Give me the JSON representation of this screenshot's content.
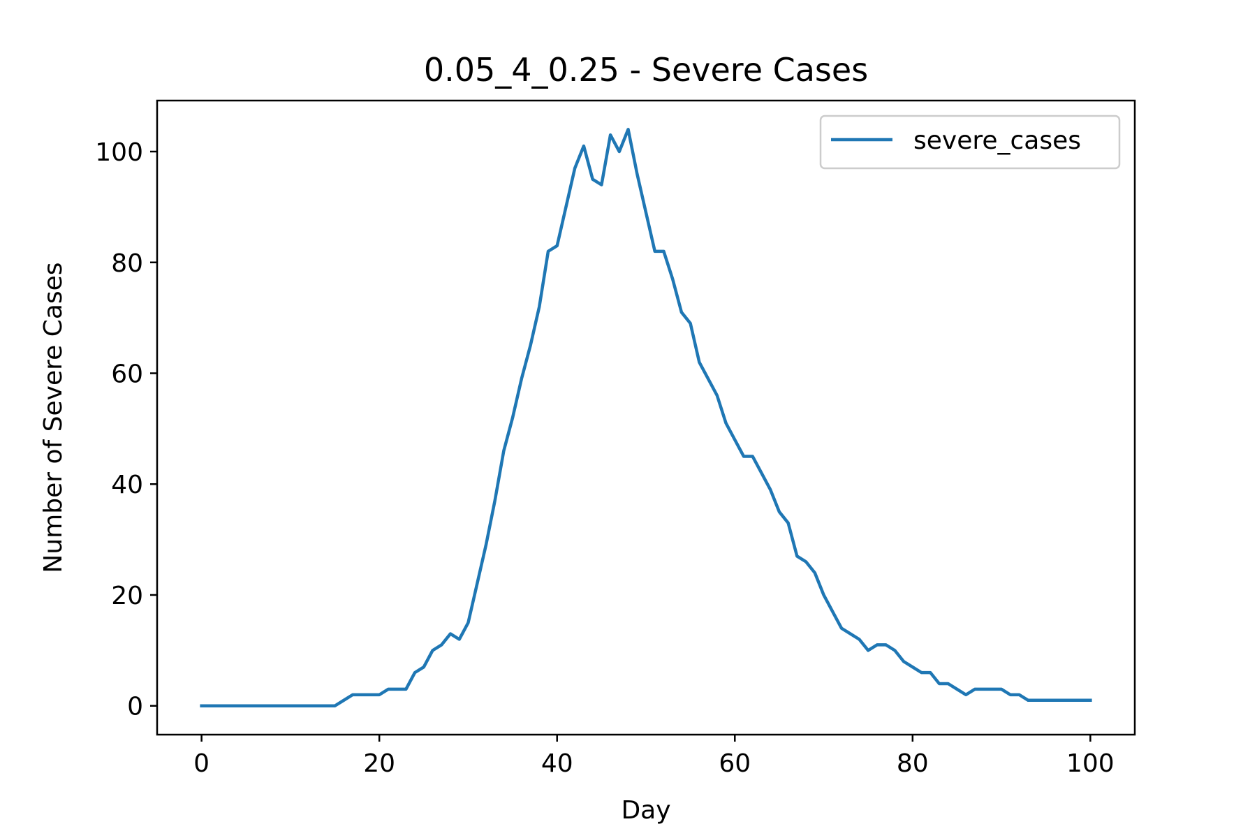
{
  "chart_data": {
    "type": "line",
    "title": "0.05_4_0.25 - Severe Cases",
    "xlabel": "Day",
    "ylabel": "Number of Severe Cases",
    "xlim": [
      -5,
      105
    ],
    "ylim": [
      -5.2,
      109.2
    ],
    "xticks": [
      0,
      20,
      40,
      60,
      80,
      100
    ],
    "yticks": [
      0,
      20,
      40,
      60,
      80,
      100
    ],
    "xtick_labels": [
      "0",
      "20",
      "40",
      "60",
      "80",
      "100"
    ],
    "ytick_labels": [
      "0",
      "20",
      "40",
      "60",
      "80",
      "100"
    ],
    "grid": false,
    "legend_position": "top-right",
    "series": [
      {
        "name": "severe_cases",
        "color": "#1f77b4",
        "x": [
          0,
          1,
          2,
          3,
          4,
          5,
          6,
          7,
          8,
          9,
          10,
          11,
          12,
          13,
          14,
          15,
          16,
          17,
          18,
          19,
          20,
          21,
          22,
          23,
          24,
          25,
          26,
          27,
          28,
          29,
          30,
          31,
          32,
          33,
          34,
          35,
          36,
          37,
          38,
          39,
          40,
          41,
          42,
          43,
          44,
          45,
          46,
          47,
          48,
          49,
          50,
          51,
          52,
          53,
          54,
          55,
          56,
          57,
          58,
          59,
          60,
          61,
          62,
          63,
          64,
          65,
          66,
          67,
          68,
          69,
          70,
          71,
          72,
          73,
          74,
          75,
          76,
          77,
          78,
          79,
          80,
          81,
          82,
          83,
          84,
          85,
          86,
          87,
          88,
          89,
          90,
          91,
          92,
          93,
          94,
          95,
          96,
          97,
          98,
          99,
          100
        ],
        "y": [
          0,
          0,
          0,
          0,
          0,
          0,
          0,
          0,
          0,
          0,
          0,
          0,
          0,
          0,
          0,
          0,
          1,
          2,
          2,
          2,
          2,
          3,
          3,
          3,
          6,
          7,
          10,
          11,
          13,
          12,
          15,
          22,
          29,
          37,
          46,
          52,
          59,
          65,
          72,
          82,
          83,
          90,
          97,
          101,
          95,
          94,
          103,
          100,
          104,
          96,
          89,
          82,
          82,
          77,
          71,
          69,
          62,
          59,
          56,
          51,
          48,
          45,
          45,
          42,
          39,
          35,
          33,
          27,
          26,
          24,
          20,
          17,
          14,
          13,
          12,
          10,
          11,
          11,
          10,
          8,
          7,
          6,
          6,
          4,
          4,
          3,
          2,
          3,
          3,
          3,
          3,
          2,
          2,
          1,
          1,
          1,
          1,
          1,
          1,
          1,
          1
        ]
      }
    ]
  }
}
